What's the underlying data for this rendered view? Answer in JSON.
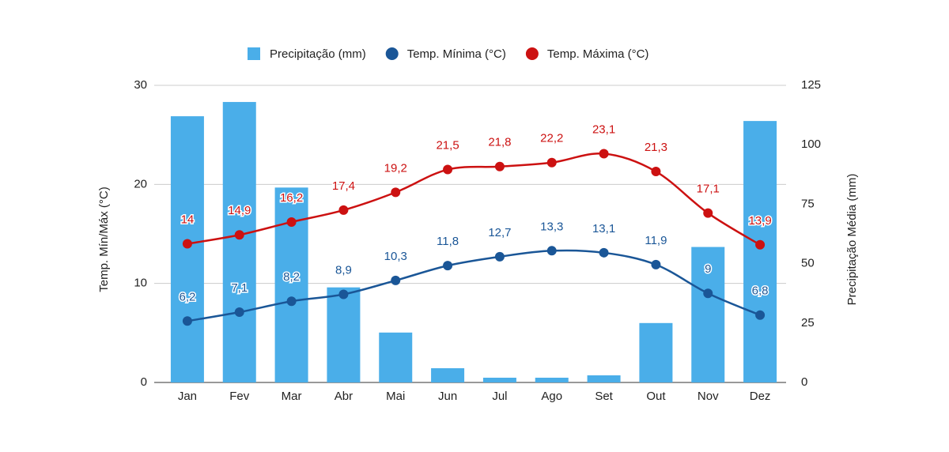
{
  "chart_data": {
    "type": "combo",
    "categories": [
      "Jan",
      "Fev",
      "Mar",
      "Abr",
      "Mai",
      "Jun",
      "Jul",
      "Ago",
      "Set",
      "Out",
      "Nov",
      "Dez"
    ],
    "y_label": "Temp. Mín/Máx (°C)",
    "y2_label": "Precipitação Média (mm)",
    "ylim": [
      0,
      30
    ],
    "yticks": [
      0,
      10,
      20,
      30
    ],
    "y2lim": [
      0,
      125
    ],
    "y2ticks": [
      0,
      25,
      50,
      75,
      100,
      125
    ],
    "grid": true,
    "legend": "top",
    "series": [
      {
        "name": "Precipitação (mm)",
        "type": "bar",
        "axis": "y2",
        "color": "#4aaee9",
        "values": [
          112,
          118,
          82,
          40,
          21,
          6,
          2,
          2,
          3,
          25,
          57,
          110
        ]
      },
      {
        "name": "Temp. Mínima (°C)",
        "type": "line",
        "color": "#1a5697",
        "values": [
          6.2,
          7.1,
          8.2,
          8.9,
          10.3,
          11.8,
          12.7,
          13.3,
          13.1,
          11.9,
          9,
          6.8
        ],
        "value_labels": [
          "6,2",
          "7,1",
          "8,2",
          "8,9",
          "10,3",
          "11,8",
          "12,7",
          "13,3",
          "13,1",
          "11,9",
          "9",
          "6,8"
        ]
      },
      {
        "name": "Temp. Máxima (°C)",
        "type": "line",
        "color": "#cc1111",
        "values": [
          14,
          14.9,
          16.2,
          17.4,
          19.2,
          21.5,
          21.8,
          22.2,
          23.1,
          21.3,
          17.1,
          13.9
        ],
        "value_labels": [
          "14",
          "14,9",
          "16,2",
          "17,4",
          "19,2",
          "21,5",
          "21,8",
          "22,2",
          "23,1",
          "21,3",
          "17,1",
          "13,9"
        ]
      }
    ]
  }
}
